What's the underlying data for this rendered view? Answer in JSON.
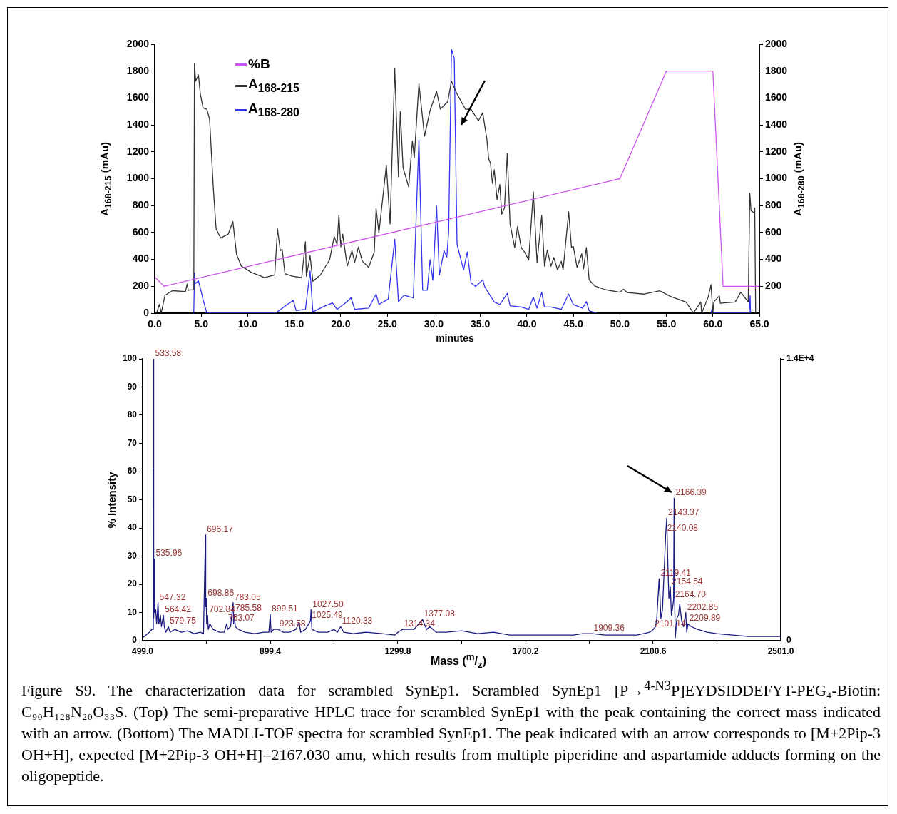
{
  "chart_data": [
    {
      "type": "line",
      "xlabel": "minutes",
      "ylabel": "A$_{168-215}$ (mAu)",
      "y2label": "A$_{168-280}$ (mAu)",
      "legend": "top left",
      "marker": "none",
      "xlim": [
        0,
        65
      ],
      "xticks": [
        {
          "value": 0,
          "label": "0.0"
        },
        {
          "value": 5,
          "label": "5.0"
        },
        {
          "value": 10,
          "label": "10.0"
        },
        {
          "value": 15,
          "label": "15.0"
        },
        {
          "value": 20,
          "label": "20.0"
        },
        {
          "value": 25,
          "label": "25.0"
        },
        {
          "value": 30,
          "label": "30.0"
        },
        {
          "value": 35,
          "label": "35.0"
        },
        {
          "value": 40,
          "label": "40.0"
        },
        {
          "value": 45,
          "label": "45.0"
        },
        {
          "value": 50,
          "label": "50.0"
        },
        {
          "value": 55,
          "label": "55.0"
        },
        {
          "value": 60,
          "label": "60.0"
        },
        {
          "value": 65,
          "label": "65.0"
        }
      ],
      "ylim": [
        0,
        2000
      ],
      "yticks": [
        0,
        200,
        400,
        600,
        800,
        1000,
        1200,
        1400,
        1600,
        1800,
        2000
      ],
      "y2lim": [
        0,
        2000
      ],
      "y2ticks": [
        200,
        400,
        600,
        800,
        1000,
        1200,
        1400,
        1600,
        1800,
        2000
      ],
      "series": [
        {
          "name": "%B",
          "color": "#cc55ee",
          "x": [
            0,
            1,
            50,
            55,
            60,
            61.1,
            65
          ],
          "values": [
            270,
            200,
            1000,
            1800,
            1800,
            200,
            200
          ]
        },
        {
          "name": "A$_{168-215}$",
          "color": "#333333",
          "x": [
            0.2,
            0.5,
            0.7,
            1.1,
            1.9,
            3.3,
            3.5,
            3.6,
            4.2,
            4.27,
            4.4,
            4.7,
            4.9,
            5.2,
            5.6,
            5.9,
            6.3,
            6.6,
            7.1,
            7.9,
            8.4,
            8.8,
            9.3,
            10.4,
            11.8,
            12.9,
            13.2,
            13.5,
            13.7,
            14.0,
            14.8,
            15.8,
            16.2,
            16.3,
            16.7,
            17.0,
            17.8,
            18.8,
            19.3,
            19.6,
            19.8,
            20.0,
            20.2,
            20.7,
            21.2,
            21.5,
            21.9,
            22.3,
            23.0,
            23.6,
            23.8,
            24.1,
            24.9,
            25.3,
            25.8,
            26.2,
            26.4,
            26.7,
            27.3,
            27.7,
            27.9,
            28.4,
            29.0,
            29.6,
            30.3,
            30.7,
            31.5,
            31.9,
            32.5,
            33.4,
            34.0,
            34.8,
            35.26,
            35.7,
            35.9,
            36.1,
            36.3,
            36.5,
            36.8,
            37.1,
            37.3,
            37.6,
            37.9,
            38.2,
            38.7,
            39.0,
            39.4,
            39.8,
            40.2,
            40.7,
            41.1,
            41.6,
            41.9,
            42.2,
            42.6,
            42.9,
            43.3,
            43.7,
            43.9,
            44.5,
            44.8,
            45.0,
            45.4,
            45.9,
            46.1,
            46.4,
            46.7,
            47.3,
            48.4,
            50.0,
            50.4,
            50.8,
            52.6,
            54.3,
            55.5,
            57.1,
            57.8,
            57.9,
            58.7,
            58.8,
            59.5,
            59.8,
            60.0,
            60.1,
            60.7,
            60.8,
            62.4,
            63.0,
            63.8,
            63.97,
            64.1,
            64.4,
            64.5,
            64.6
          ],
          "values": [
            0,
            66,
            0,
            133,
            167,
            161,
            218,
            171,
            174,
            1858,
            1725,
            1772,
            1630,
            1526,
            1517,
            1441,
            929,
            626,
            559,
            588,
            682,
            436,
            351,
            303,
            265,
            284,
            626,
            464,
            474,
            294,
            275,
            265,
            531,
            275,
            427,
            237,
            284,
            398,
            569,
            512,
            730,
            493,
            588,
            351,
            464,
            379,
            493,
            389,
            341,
            455,
            777,
            597,
            1100,
            663,
            1820,
            1014,
            1498,
            1081,
            938,
            1280,
            1156,
            1706,
            1317,
            1507,
            1649,
            1517,
            1573,
            1725,
            1630,
            1517,
            1517,
            1431,
            1490,
            1297,
            1150,
            1113,
            966,
            1067,
            846,
            957,
            736,
            782,
            1187,
            662,
            488,
            644,
            488,
            450,
            396,
            902,
            378,
            727,
            350,
            469,
            350,
            414,
            322,
            386,
            322,
            754,
            488,
            497,
            340,
            442,
            331,
            488,
            248,
            202,
            175,
            156,
            178,
            153,
            142,
            166,
            123,
            83,
            13,
            0,
            83,
            0,
            120,
            212,
            0,
            83,
            129,
            74,
            83,
            156,
            83,
            892,
            763,
            745,
            782,
            0
          ]
        },
        {
          "name": "A$_{168-280}$",
          "color": "#3333ee",
          "x": [
            4.2,
            4.27,
            4.35,
            4.7,
            5.0,
            5.2,
            5.6,
            13.0,
            14.1,
            14.9,
            15.2,
            16.2,
            16.7,
            17.0,
            18.1,
            19.1,
            19.6,
            20.5,
            21.1,
            21.5,
            23.0,
            23.8,
            24.1,
            25.1,
            25.8,
            26.2,
            26.8,
            27.8,
            28.4,
            28.8,
            29.3,
            29.6,
            29.9,
            30.3,
            30.6,
            31.1,
            31.4,
            31.6,
            31.9,
            32.2,
            32.5,
            33.2,
            33.6,
            34.0,
            34.5,
            35.26,
            35.5,
            36.0,
            36.5,
            37.1,
            37.9,
            38.2,
            39.4,
            40.2,
            40.7,
            41.1,
            41.6,
            41.9,
            42.6,
            43.7,
            44.5,
            45.0,
            46.0,
            46.4,
            46.7,
            47.5,
            50,
            59.8,
            59.9,
            60.0,
            63.9,
            64.0,
            64.05
          ],
          "values": [
            0,
            300,
            220,
            240,
            160,
            100,
            0,
            0,
            57,
            95,
            19,
            28,
            313,
            9,
            47,
            76,
            28,
            76,
            114,
            28,
            38,
            142,
            66,
            104,
            550,
            85,
            133,
            114,
            1289,
            171,
            171,
            398,
            246,
            796,
            284,
            464,
            417,
            607,
            1962,
            1896,
            512,
            322,
            455,
            227,
            199,
            248,
            193,
            138,
            83,
            64,
            147,
            55,
            46,
            28,
            120,
            37,
            156,
            46,
            46,
            28,
            142,
            64,
            37,
            86,
            18,
            0,
            null,
            0,
            30,
            0,
            0,
            130,
            0
          ]
        }
      ]
    },
    {
      "type": "line",
      "xlabel": "Mass ($^{m}$/$_{z}$)",
      "ylabel": "% Intensity",
      "marker": "none",
      "xlim": [
        499,
        2501
      ],
      "xticks": [
        {
          "value": 499,
          "label": "499.0"
        },
        {
          "value": 699.2,
          "label": null
        },
        {
          "value": 899.4,
          "label": "899.4"
        },
        {
          "value": 1099.6,
          "label": null
        },
        {
          "value": 1299.8,
          "label": "1299.8"
        },
        {
          "value": 1500,
          "label": null
        },
        {
          "value": 1700.2,
          "label": "1700.2"
        },
        {
          "value": 1900.4,
          "label": null
        },
        {
          "value": 2100.6,
          "label": "2100.6"
        },
        {
          "value": 2300.8,
          "label": null
        },
        {
          "value": 2501,
          "label": "2501.0"
        }
      ],
      "ylim": [
        0,
        100
      ],
      "yticks": [
        0,
        10,
        20,
        30,
        40,
        50,
        60,
        70,
        80,
        90,
        100
      ],
      "y2lim": [
        0,
        14000
      ],
      "y2ticks": [
        0,
        {
          "value": 14000,
          "label": "1.4E+4"
        }
      ],
      "series": [
        {
          "color": "#1a1a80",
          "x": [
            499,
            510,
            520,
            528,
            532.5,
            533,
            533.3,
            533.58,
            534.5,
            535.96,
            537,
            540,
            543,
            547.32,
            550,
            555,
            558,
            564.42,
            567,
            572,
            579.75,
            585,
            600,
            620,
            640,
            660,
            680,
            690,
            696.17,
            697,
            698.86,
            700,
            702.84,
            705,
            710,
            720,
            740,
            755,
            763.07,
            766,
            775,
            783.05,
            784.5,
            785.58,
            790,
            800,
            820,
            850,
            880,
            895,
            899.51,
            902,
            910,
            923.58,
            940,
            960,
            980,
            990,
            995,
            1010,
            1025.49,
            1027.5,
            1030,
            1050,
            1080,
            1100,
            1110,
            1120.33,
            1130,
            1160,
            1200,
            1250,
            1290,
            1300,
            1314.34,
            1330,
            1350,
            1377.08,
            1390,
            1400,
            1420,
            1450,
            1500,
            1550,
            1600,
            1650,
            1700,
            1750,
            1800,
            1850,
            1880,
            1909.36,
            1950,
            2000,
            2050,
            2090,
            2101.14,
            2108,
            2112,
            2119.41,
            2125,
            2130,
            2140.08,
            2143.37,
            2146,
            2150,
            2154.54,
            2158,
            2162,
            2164.7,
            2166.39,
            2168,
            2170,
            2175,
            2180,
            2184,
            2190,
            2196,
            2202.85,
            2206,
            2209.89,
            2220,
            2240,
            2270,
            2300,
            2350,
            2400,
            2450,
            2501
          ],
          "values": [
            1,
            2,
            3,
            4,
            4,
            61,
            10,
            100,
            8,
            29,
            10,
            11,
            6,
            13.5,
            6,
            9,
            5,
            9,
            5,
            3,
            5,
            3,
            4,
            3,
            3.5,
            2.5,
            3,
            2.5,
            37.5,
            12,
            15,
            6,
            9,
            4,
            6,
            4,
            3,
            3,
            6,
            4,
            5,
            13.5,
            6,
            9.5,
            5,
            4,
            3,
            2.5,
            3,
            3,
            9.3,
            3,
            4,
            4,
            3,
            3,
            4,
            6.5,
            3,
            4,
            7,
            11,
            4,
            3,
            3,
            4,
            3,
            5,
            3,
            2.5,
            3,
            2.5,
            2,
            3,
            4,
            4,
            4,
            7.5,
            4,
            5,
            3,
            3,
            3.5,
            2.5,
            3,
            2,
            2,
            2,
            2,
            2,
            2.5,
            2.5,
            2,
            2,
            2,
            3,
            4,
            5,
            8,
            22,
            8,
            11,
            38,
            43.6,
            30,
            15,
            19,
            9,
            12,
            14.5,
            50.6,
            15,
            1,
            8,
            9,
            13,
            7,
            5,
            10,
            3,
            6,
            5,
            4,
            3,
            2.5,
            2,
            1.5,
            1.5,
            1.5
          ]
        }
      ],
      "annotations": [
        {
          "text": "533.58",
          "x": 533.58,
          "y": 100
        },
        {
          "text": "535.96",
          "x": 535.96,
          "y": 29
        },
        {
          "text": "547.32",
          "x": 547.32,
          "y": 13.5
        },
        {
          "text": "564.42",
          "x": 564.42,
          "y": 9
        },
        {
          "text": "579.75",
          "x": 579.75,
          "y": 5
        },
        {
          "text": "696.17",
          "x": 696.17,
          "y": 37.5
        },
        {
          "text": "698.86",
          "x": 698.86,
          "y": 15
        },
        {
          "text": "702.84",
          "x": 702.84,
          "y": 9
        },
        {
          "text": "763.07",
          "x": 763.07,
          "y": 6
        },
        {
          "text": "783.05",
          "x": 783.05,
          "y": 13.5
        },
        {
          "text": "785.58",
          "x": 785.58,
          "y": 9.5
        },
        {
          "text": "899.51",
          "x": 899.51,
          "y": 9.3
        },
        {
          "text": "923.58",
          "x": 923.58,
          "y": 4
        },
        {
          "text": "1025.49",
          "x": 1025.49,
          "y": 7
        },
        {
          "text": "1027.50",
          "x": 1027.5,
          "y": 11
        },
        {
          "text": "1120.33",
          "x": 1120.33,
          "y": 5
        },
        {
          "text": "1314.34",
          "x": 1314.34,
          "y": 4
        },
        {
          "text": "1377.08",
          "x": 1377.08,
          "y": 7.5
        },
        {
          "text": "1909.36",
          "x": 1909.36,
          "y": 2.5
        },
        {
          "text": "2101.14",
          "x": 2101.14,
          "y": 4
        },
        {
          "text": "2119.41",
          "x": 2119.41,
          "y": 22
        },
        {
          "text": "2140.08",
          "x": 2140.08,
          "y": 38
        },
        {
          "text": "2143.37",
          "x": 2143.37,
          "y": 43.6
        },
        {
          "text": "2154.54",
          "x": 2154.54,
          "y": 19
        },
        {
          "text": "2164.70",
          "x": 2164.7,
          "y": 14.5
        },
        {
          "text": "2166.39",
          "x": 2166.39,
          "y": 50.6
        },
        {
          "text": "2202.85",
          "x": 2202.85,
          "y": 10
        },
        {
          "text": "2209.89",
          "x": 2209.89,
          "y": 6
        },
        "Figure S9. The characterization data for scrambled SynEp1. Scrambled SynEp1 [P→$^{4-N3}$P]EYDSIDDEFYT-PEG₄-Biotin: C₉₀H₁₂₈N₂₀O₃₃S. (Top) The semi-preparative HPLC trace for scrambled SynEp1 with the peak containing the correct mass indicated with an arrow. (Bottom) The MADLI-TOF spectra for scrambled SynEp1. The peak indicated with an arrow corresponds to [M+2Pip-3 OH+H], expected [M+2Pip-3 OH+H]=2167.030 amu, which results from multiple piperidine and aspartamide adducts forming on the oligopeptide."
      ]
    }
  ]
}
